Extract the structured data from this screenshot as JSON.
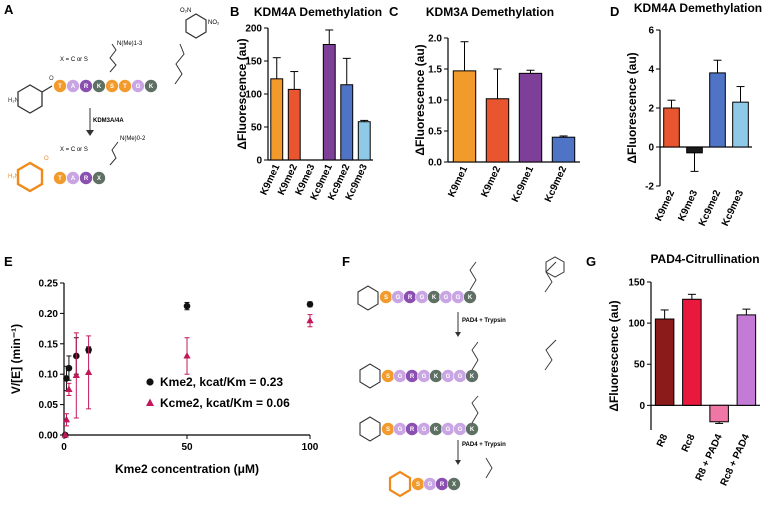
{
  "panel_labels": {
    "A": "A",
    "B": "B",
    "C": "C",
    "D": "D",
    "E": "E",
    "F": "F",
    "G": "G"
  },
  "schemes": {
    "a_x_label": "X = C or S",
    "a_x_label2": "X = C or S",
    "a_nme_top": "N(Me)1-3",
    "a_nme_bottom": "N(Me)0-2",
    "a_enzyme": "KDM3A/4A",
    "f_enzyme1": "PAD4 + Trypsin",
    "f_enzyme2": "PAD4 + Trypsin",
    "a_beads_top": [
      "T",
      "A",
      "R",
      "K",
      "S",
      "T",
      "G",
      "K"
    ],
    "a_beads_bottom": [
      "T",
      "A",
      "R",
      "X"
    ],
    "f_beads_1": [
      "S",
      "G",
      "R",
      "G",
      "K",
      "G",
      "G",
      "K"
    ],
    "f_beads_2": [
      "S",
      "G",
      "R",
      "G",
      "K",
      "G",
      "G",
      "K"
    ],
    "f_beads_3": [
      "S",
      "G",
      "R",
      "G",
      "K",
      "G",
      "G",
      "K"
    ],
    "f_beads_4": [
      "S",
      "G",
      "R",
      "X"
    ]
  },
  "chart_data": [
    {
      "id": "B",
      "type": "bar",
      "title": "KDM4A Demethylation",
      "ylabel": "ΔFluorescence (au)",
      "ylim": [
        0,
        200
      ],
      "yticks": [
        0,
        50,
        100,
        150,
        200
      ],
      "categories": [
        "K9me1",
        "K9me2",
        "K9me3",
        "Kc9me1",
        "Kc9me2",
        "Kc9me3"
      ],
      "values": [
        123,
        107,
        0,
        175,
        114,
        58
      ],
      "errors": [
        32,
        27,
        0,
        22,
        40,
        2
      ],
      "colors": [
        "#f39a2c",
        "#e8552e",
        "#cc3b2b",
        "#7d3f98",
        "#4f74c6",
        "#8ecae8"
      ]
    },
    {
      "id": "C",
      "type": "bar",
      "title": "KDM3A Demethylation",
      "ylabel": "ΔFluorescence (au)",
      "ylim": [
        0,
        2.0
      ],
      "yticks": [
        0.0,
        0.5,
        1.0,
        1.5,
        2.0
      ],
      "categories": [
        "K9me1",
        "K9me2",
        "Kc9me1",
        "Kc9me2"
      ],
      "values": [
        1.47,
        1.02,
        1.43,
        0.4
      ],
      "errors": [
        0.47,
        0.48,
        0.05,
        0.02
      ],
      "colors": [
        "#f39a2c",
        "#e8552e",
        "#7d3f98",
        "#4f74c6"
      ]
    },
    {
      "id": "D",
      "type": "bar",
      "title": "KDM4A Demethylation",
      "ylabel": "ΔFluorescence (au)",
      "ylim": [
        -2,
        6
      ],
      "yticks": [
        -2,
        0,
        2,
        4,
        6
      ],
      "categories": [
        "K9me2",
        "K9me3",
        "Kc9me2",
        "Kc9me3"
      ],
      "values": [
        2.0,
        -0.3,
        3.8,
        2.3
      ],
      "errors": [
        0.4,
        0.95,
        0.65,
        0.8
      ],
      "colors": [
        "#e8552e",
        "#1a1a1a",
        "#4f74c6",
        "#8ecae8"
      ]
    },
    {
      "id": "E",
      "type": "scatter",
      "title": "",
      "xlabel": "Kme2 concentration (μM)",
      "ylabel": "V/[E] (min⁻¹)",
      "xlim": [
        0,
        100
      ],
      "ylim": [
        0,
        0.25
      ],
      "xticks": [
        0,
        50,
        100
      ],
      "yticks": [
        0.0,
        0.05,
        0.1,
        0.15,
        0.2,
        0.25
      ],
      "series": [
        {
          "name": "Kme2, kcat/Km = 0.23",
          "color": "#111111",
          "marker": "circle",
          "x": [
            0.5,
            1,
            2,
            5,
            10,
            50,
            100
          ],
          "y": [
            0.0,
            0.093,
            0.11,
            0.13,
            0.14,
            0.212,
            0.215
          ],
          "err": [
            0.0,
            0.02,
            0.02,
            0.03,
            0.005,
            0.006,
            0.004
          ]
        },
        {
          "name": "Kcme2, kcat/Km = 0.06",
          "color": "#c2185b",
          "marker": "triangle",
          "x": [
            0.5,
            1,
            2,
            5,
            10,
            50,
            100
          ],
          "y": [
            0.0,
            0.025,
            0.075,
            0.098,
            0.103,
            0.13,
            0.188
          ],
          "err": [
            0.0,
            0.01,
            0.01,
            0.07,
            0.06,
            0.03,
            0.01
          ]
        }
      ]
    },
    {
      "id": "G",
      "type": "bar",
      "title": "PAD4-Citrullination",
      "ylabel": "ΔFluorescence (au)",
      "ylim": [
        -30,
        150
      ],
      "yticks": [
        0,
        50,
        100,
        150
      ],
      "categories": [
        "R8",
        "Rc8",
        "R8 + PAD4",
        "Rc8 + PAD4"
      ],
      "values": [
        105,
        129,
        -20,
        110
      ],
      "errors": [
        11,
        6,
        2,
        7
      ],
      "colors": [
        "#8b1a1a",
        "#e8193c",
        "#ef77a6",
        "#c47bd6"
      ]
    }
  ]
}
